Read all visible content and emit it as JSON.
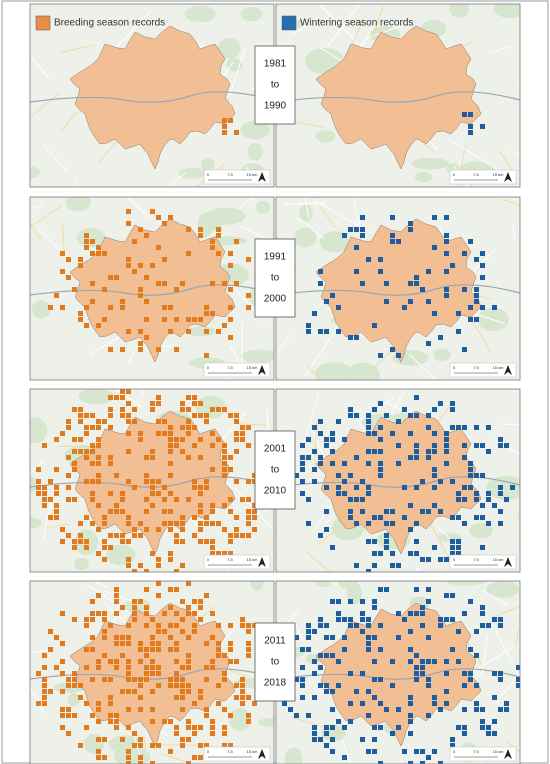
{
  "legend": {
    "breeding": "Breeding season records",
    "wintering": "Wintering season records"
  },
  "panels": [
    {
      "from": "1981",
      "joiner": "to",
      "to": "1990"
    },
    {
      "from": "1991",
      "joiner": "to",
      "to": "2000"
    },
    {
      "from": "2001",
      "joiner": "to",
      "to": "2010"
    },
    {
      "from": "2011",
      "joiner": "to",
      "to": "2018"
    }
  ],
  "scale_labels": [
    "0",
    "7.5",
    "15 km"
  ]
}
